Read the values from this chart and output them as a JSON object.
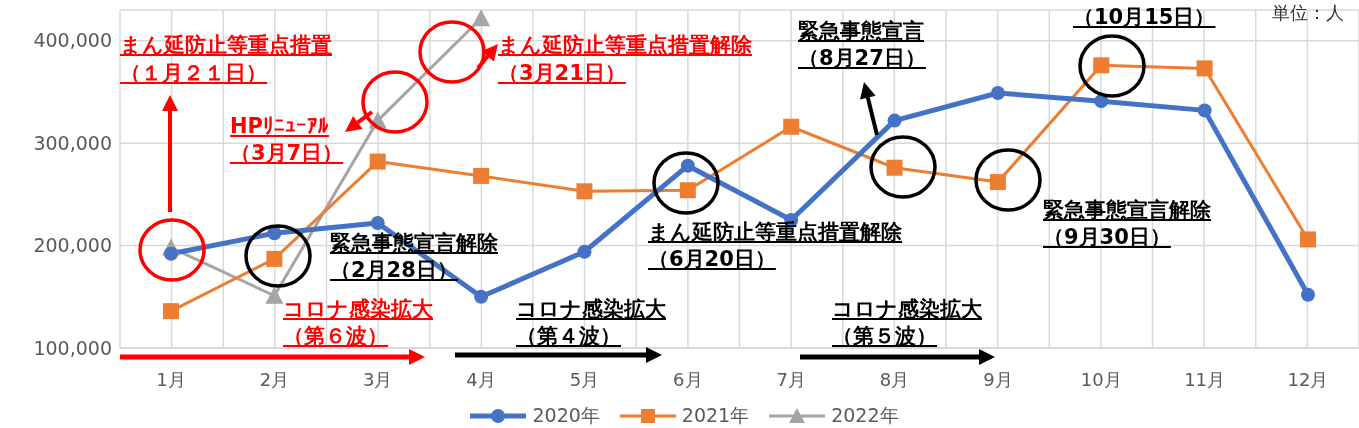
{
  "chart_data": {
    "type": "line",
    "categories": [
      "1月",
      "2月",
      "3月",
      "4月",
      "5月",
      "6月",
      "7月",
      "8月",
      "9月",
      "10月",
      "11月",
      "12月"
    ],
    "series": [
      {
        "name": "2020年",
        "color": "#4472c4",
        "marker": "circle",
        "values": [
          192000,
          212000,
          222000,
          150000,
          194000,
          278000,
          225000,
          322000,
          349000,
          341000,
          332000,
          152000
        ]
      },
      {
        "name": "2021年",
        "color": "#ed7d31",
        "marker": "square",
        "values": [
          136000,
          187000,
          282000,
          268000,
          253000,
          254000,
          316000,
          276000,
          262000,
          376000,
          373000,
          206000
        ]
      },
      {
        "name": "2022年",
        "color": "#a5a5a5",
        "marker": "triangle",
        "values": [
          198000,
          151000,
          322000,
          422000,
          null,
          null,
          null,
          null,
          null,
          null,
          null,
          null
        ]
      }
    ],
    "ylim": [
      100000,
      430000
    ],
    "yticks": [
      {
        "value": 100000,
        "label": "100,000"
      },
      {
        "value": 200000,
        "label": "200,000"
      },
      {
        "value": 300000,
        "label": "300,000"
      },
      {
        "value": 400000,
        "label": "400,000"
      }
    ],
    "grid": true,
    "legend": "bottom",
    "line_style": "solid",
    "annotations": [
      "まん延防止等重点措置",
      "（１月２１日）",
      "HPﾘﾆｭｰｱﾙ",
      "（3月7日）",
      "まん延防止等重点措置解除",
      "（3月21日）",
      "緊急事態宣言",
      "（8月27日）",
      "（10月15日）",
      "緊急事態宣言解除",
      "（2月28日）",
      "まん延防止等重点措置解除",
      "（6月20日）",
      "緊急事態宣言解除",
      "（9月30日）",
      "コロナ感染拡大",
      "（第６波）",
      "コロナ感染拡大",
      "（第４波）",
      "コロナ感染拡大",
      "（第５波）",
      "単位：人"
    ]
  }
}
